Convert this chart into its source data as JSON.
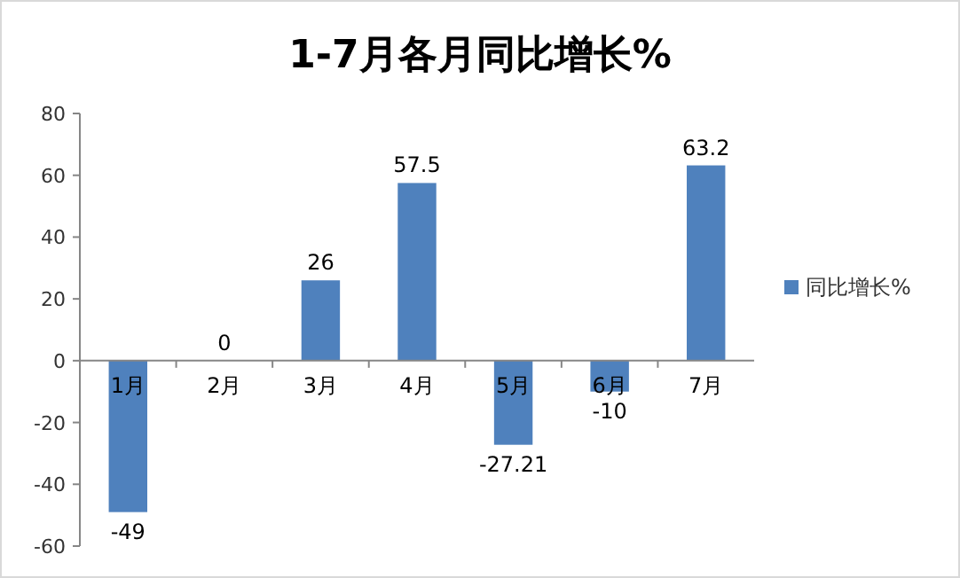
{
  "chart_data": {
    "type": "bar",
    "title": "1-7月各月同比增长%",
    "categories": [
      "1月",
      "2月",
      "3月",
      "4月",
      "5月",
      "6月",
      "7月"
    ],
    "series": [
      {
        "name": "同比增长%",
        "color": "#4f81bd",
        "values": [
          -49,
          0,
          26,
          57.5,
          -27.21,
          -10,
          63.2
        ]
      }
    ],
    "ylim": [
      -60,
      80
    ],
    "yticks": [
      -60,
      -40,
      -20,
      0,
      20,
      40,
      60,
      80
    ],
    "grid": false,
    "legend": "right",
    "data_labels": true
  }
}
